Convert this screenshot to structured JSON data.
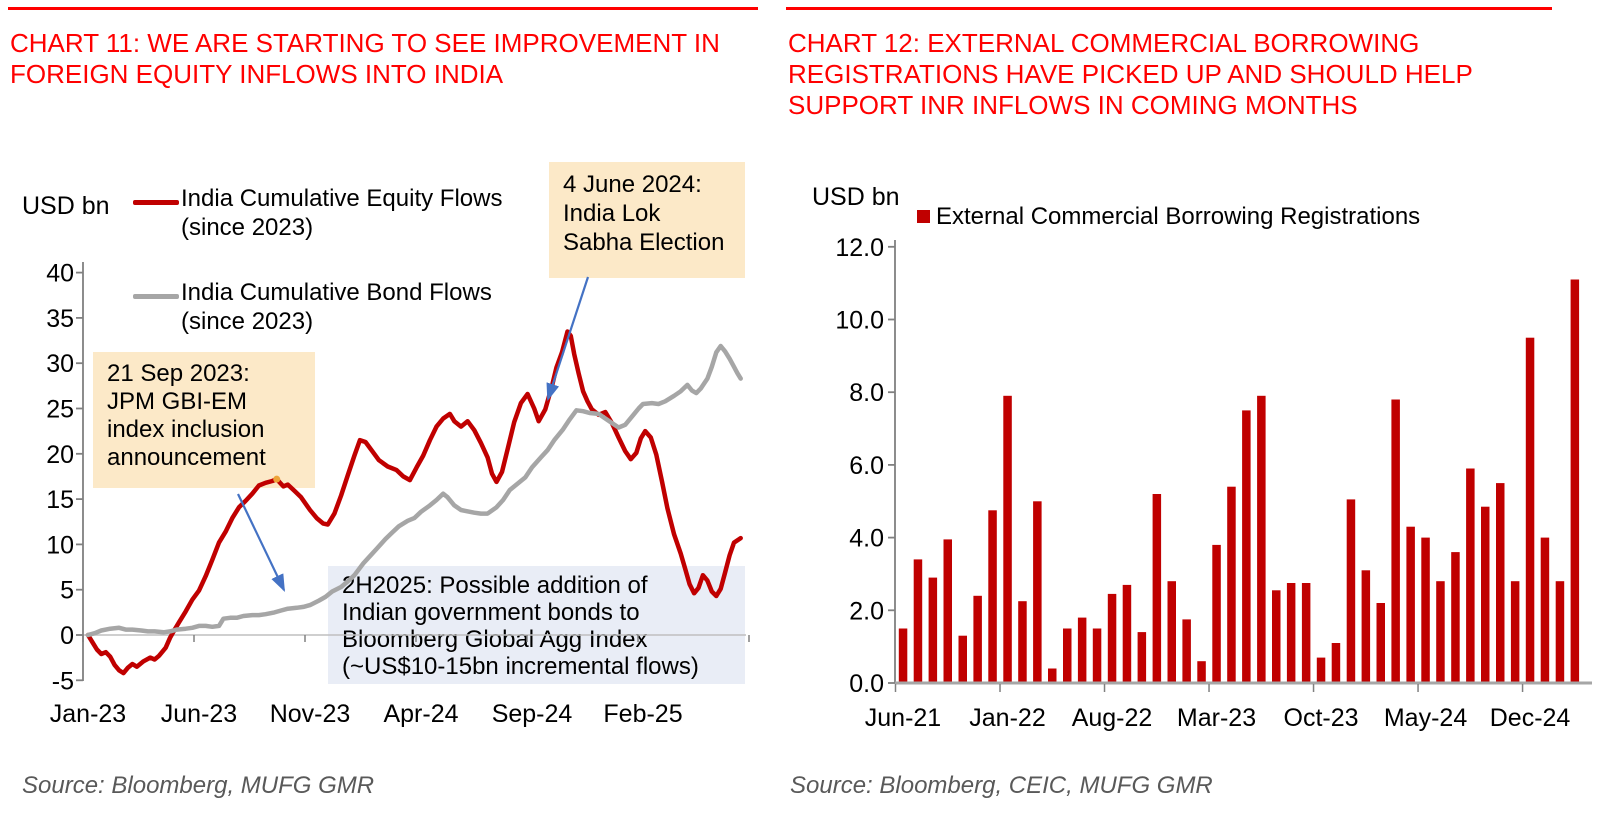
{
  "page": {
    "colors": {
      "title_red": "#FF0000",
      "rule_red": "#FF0000",
      "equity_red": "#C00000",
      "bond_gray": "#A6A6A6",
      "bar_red": "#C00000",
      "annotation_cream": "#FCE9C8",
      "annotation_blue": "#E9EDF6",
      "arrow_blue": "#4472C4",
      "source_gray": "#595959",
      "axis_gray": "#808080",
      "zero_line_gray": "#BFBFBF",
      "baseline_gray": "#A6A6A6",
      "peak_marker_orange": "#EDA338",
      "tick_text": "#000000"
    }
  },
  "chart_data": [
    {
      "type": "line",
      "title": "CHART 11: WE ARE STARTING TO SEE IMPROVEMENT IN\nFOREIGN EQUITY INFLOWS INTO INDIA",
      "unit_label": "USD bn",
      "ylim": [
        -5,
        40
      ],
      "ytick_step": 5,
      "ytick_labels": [
        "-5",
        "0",
        "5",
        "10",
        "15",
        "20",
        "25",
        "30",
        "35",
        "40"
      ],
      "x_tick_labels": [
        "Jan-23",
        "Jun-23",
        "Nov-23",
        "Apr-24",
        "Sep-24",
        "Feb-25"
      ],
      "x_tick_months": [
        0,
        5,
        10,
        15,
        20,
        25
      ],
      "grid": "zero-line-only",
      "legend_position": "top-left-inside",
      "series": [
        {
          "name": "India Cumulative Equity Flows (since 2023)",
          "legend_label": "India Cumulative Equity Flows\n(since 2023)",
          "color_key": "equity_red",
          "points": [
            [
              0,
              0
            ],
            [
              0.2,
              -0.8
            ],
            [
              0.4,
              -1.6
            ],
            [
              0.6,
              -2.1
            ],
            [
              0.8,
              -1.9
            ],
            [
              1,
              -2.4
            ],
            [
              1.2,
              -3.3
            ],
            [
              1.4,
              -3.9
            ],
            [
              1.6,
              -4.2
            ],
            [
              1.8,
              -3.6
            ],
            [
              2,
              -3.2
            ],
            [
              2.2,
              -3.5
            ],
            [
              2.5,
              -2.9
            ],
            [
              2.8,
              -2.5
            ],
            [
              3,
              -2.7
            ],
            [
              3.2,
              -2.3
            ],
            [
              3.5,
              -1.4
            ],
            [
              3.7,
              -0.3
            ],
            [
              3.9,
              0.6
            ],
            [
              4.1,
              1.4
            ],
            [
              4.4,
              2.6
            ],
            [
              4.7,
              3.9
            ],
            [
              5,
              4.9
            ],
            [
              5.3,
              6.5
            ],
            [
              5.6,
              8.3
            ],
            [
              5.9,
              10.2
            ],
            [
              6.2,
              11.4
            ],
            [
              6.5,
              12.9
            ],
            [
              6.8,
              14.1
            ],
            [
              7.1,
              14.8
            ],
            [
              7.4,
              15.6
            ],
            [
              7.7,
              16.5
            ],
            [
              8,
              16.8
            ],
            [
              8.3,
              17
            ],
            [
              8.5,
              17.2
            ],
            [
              8.8,
              16.4
            ],
            [
              9,
              16.6
            ],
            [
              9.3,
              15.9
            ],
            [
              9.6,
              15.2
            ],
            [
              10,
              13.8
            ],
            [
              10.3,
              12.9
            ],
            [
              10.6,
              12.3
            ],
            [
              10.8,
              12.2
            ],
            [
              11.1,
              13.4
            ],
            [
              11.4,
              15.4
            ],
            [
              11.7,
              17.6
            ],
            [
              12,
              19.8
            ],
            [
              12.25,
              21.5
            ],
            [
              12.5,
              21.3
            ],
            [
              12.8,
              20.3
            ],
            [
              13.1,
              19.3
            ],
            [
              13.5,
              18.6
            ],
            [
              13.9,
              18.2
            ],
            [
              14.2,
              17.5
            ],
            [
              14.5,
              17.1
            ],
            [
              14.8,
              18.5
            ],
            [
              15.1,
              19.8
            ],
            [
              15.4,
              21.5
            ],
            [
              15.7,
              23
            ],
            [
              16,
              23.9
            ],
            [
              16.3,
              24.4
            ],
            [
              16.5,
              23.6
            ],
            [
              16.8,
              23
            ],
            [
              17.1,
              23.6
            ],
            [
              17.4,
              22.6
            ],
            [
              17.7,
              21.2
            ],
            [
              18,
              19.6
            ],
            [
              18.2,
              17.8
            ],
            [
              18.4,
              16.9
            ],
            [
              18.65,
              18
            ],
            [
              18.9,
              20.5
            ],
            [
              19.2,
              23.5
            ],
            [
              19.5,
              25.6
            ],
            [
              19.8,
              26.6
            ],
            [
              20.1,
              25
            ],
            [
              20.3,
              23.6
            ],
            [
              20.6,
              24.9
            ],
            [
              20.9,
              27.5
            ],
            [
              21.1,
              29.5
            ],
            [
              21.35,
              31.2
            ],
            [
              21.6,
              33.5
            ],
            [
              21.75,
              33
            ],
            [
              21.9,
              31
            ],
            [
              22.1,
              28.9
            ],
            [
              22.3,
              26.9
            ],
            [
              22.5,
              25.8
            ],
            [
              22.7,
              24.9
            ],
            [
              23,
              24.3
            ],
            [
              23.3,
              24.6
            ],
            [
              23.6,
              23.4
            ],
            [
              23.9,
              21.8
            ],
            [
              24.2,
              20.3
            ],
            [
              24.45,
              19.4
            ],
            [
              24.7,
              20.1
            ],
            [
              24.9,
              21.7
            ],
            [
              25.1,
              22.5
            ],
            [
              25.35,
              21.8
            ],
            [
              25.6,
              19.9
            ],
            [
              25.85,
              17
            ],
            [
              26.1,
              14
            ],
            [
              26.4,
              11.1
            ],
            [
              26.7,
              9
            ],
            [
              26.9,
              7.3
            ],
            [
              27.1,
              5.6
            ],
            [
              27.3,
              4.6
            ],
            [
              27.5,
              5.2
            ],
            [
              27.7,
              6.6
            ],
            [
              27.9,
              6
            ],
            [
              28.1,
              4.8
            ],
            [
              28.3,
              4.3
            ],
            [
              28.5,
              5.1
            ],
            [
              28.7,
              6.9
            ],
            [
              28.9,
              8.8
            ],
            [
              29.1,
              10.2
            ],
            [
              29.4,
              10.7
            ]
          ]
        },
        {
          "name": "India Cumulative Bond Flows (since 2023)",
          "legend_label": "India Cumulative Bond Flows\n(since 2023)",
          "color_key": "bond_gray",
          "points": [
            [
              0,
              0
            ],
            [
              0.3,
              0.2
            ],
            [
              0.6,
              0.5
            ],
            [
              1,
              0.7
            ],
            [
              1.4,
              0.8
            ],
            [
              1.7,
              0.6
            ],
            [
              2,
              0.6
            ],
            [
              2.4,
              0.5
            ],
            [
              2.7,
              0.4
            ],
            [
              3,
              0.4
            ],
            [
              3.4,
              0.3
            ],
            [
              3.7,
              0.4
            ],
            [
              4,
              0.6
            ],
            [
              4.4,
              0.7
            ],
            [
              4.7,
              0.8
            ],
            [
              5,
              1
            ],
            [
              5.3,
              1
            ],
            [
              5.6,
              0.9
            ],
            [
              5.9,
              1
            ],
            [
              6.1,
              1.8
            ],
            [
              6.4,
              1.9
            ],
            [
              6.7,
              1.9
            ],
            [
              7,
              2.1
            ],
            [
              7.4,
              2.2
            ],
            [
              7.7,
              2.2
            ],
            [
              8,
              2.3
            ],
            [
              8.4,
              2.5
            ],
            [
              8.7,
              2.7
            ],
            [
              9,
              2.9
            ],
            [
              9.4,
              3
            ],
            [
              9.7,
              3.1
            ],
            [
              10,
              3.3
            ],
            [
              10.4,
              3.8
            ],
            [
              10.7,
              4.2
            ],
            [
              11,
              4.8
            ],
            [
              11.4,
              5.3
            ],
            [
              11.7,
              5.9
            ],
            [
              12,
              6.6
            ],
            [
              12.4,
              7.9
            ],
            [
              12.7,
              8.7
            ],
            [
              13,
              9.5
            ],
            [
              13.4,
              10.6
            ],
            [
              13.7,
              11.3
            ],
            [
              14,
              12
            ],
            [
              14.4,
              12.6
            ],
            [
              14.7,
              12.9
            ],
            [
              15,
              13.6
            ],
            [
              15.4,
              14.3
            ],
            [
              15.7,
              14.9
            ],
            [
              16,
              15.6
            ],
            [
              16.2,
              15.2
            ],
            [
              16.5,
              14.3
            ],
            [
              16.8,
              13.8
            ],
            [
              17,
              13.7
            ],
            [
              17.4,
              13.5
            ],
            [
              17.7,
              13.4
            ],
            [
              18,
              13.4
            ],
            [
              18.4,
              14.1
            ],
            [
              18.7,
              14.9
            ],
            [
              19,
              16
            ],
            [
              19.4,
              16.8
            ],
            [
              19.7,
              17.4
            ],
            [
              20,
              18.5
            ],
            [
              20.4,
              19.6
            ],
            [
              20.7,
              20.4
            ],
            [
              21,
              21.5
            ],
            [
              21.4,
              22.7
            ],
            [
              21.7,
              23.8
            ],
            [
              22,
              24.8
            ],
            [
              22.3,
              24.7
            ],
            [
              22.6,
              24.5
            ],
            [
              23,
              24.4
            ],
            [
              23.3,
              23.9
            ],
            [
              23.6,
              23.4
            ],
            [
              23.9,
              22.9
            ],
            [
              24.2,
              23.2
            ],
            [
              24.5,
              24.1
            ],
            [
              24.8,
              25
            ],
            [
              25,
              25.5
            ],
            [
              25.4,
              25.6
            ],
            [
              25.7,
              25.5
            ],
            [
              26,
              25.8
            ],
            [
              26.4,
              26.4
            ],
            [
              26.7,
              26.9
            ],
            [
              27,
              27.6
            ],
            [
              27.2,
              27
            ],
            [
              27.4,
              26.7
            ],
            [
              27.6,
              27.2
            ],
            [
              27.9,
              28.3
            ],
            [
              28.1,
              29.6
            ],
            [
              28.3,
              31.2
            ],
            [
              28.5,
              31.9
            ],
            [
              28.7,
              31.3
            ],
            [
              28.9,
              30.5
            ],
            [
              29.1,
              29.6
            ],
            [
              29.25,
              28.9
            ],
            [
              29.4,
              28.3
            ]
          ]
        }
      ],
      "peak_marker": {
        "month": 8.5,
        "value": 17.2
      },
      "annotations": [
        {
          "id": "jpm-inclusion",
          "text": "21 Sep 2023:\nJPM GBI-EM\nindex inclusion\nannouncement",
          "bg_key": "annotation_cream"
        },
        {
          "id": "lok-sabha-election",
          "text": "4 June 2024:\nIndia Lok\nSabha Election",
          "bg_key": "annotation_cream"
        },
        {
          "id": "bloomberg-agg",
          "text": "2H2025: Possible addition of\nIndian government bonds to\nBloomberg Global Agg Index\n(~US$10-15bn incremental flows)",
          "bg_key": "annotation_blue"
        }
      ],
      "source": "Source: Bloomberg, MUFG GMR"
    },
    {
      "type": "bar",
      "title": "CHART 12: EXTERNAL COMMERCIAL BORROWING\nREGISTRATIONS HAVE PICKED UP AND SHOULD HELP\nSUPPORT INR INFLOWS IN COMING MONTHS",
      "unit_label": "USD bn",
      "legend_label": "External Commercial Borrowing Registrations",
      "ylim": [
        0,
        12
      ],
      "ytick_step": 2,
      "ytick_labels": [
        "0.0",
        "2.0",
        "4.0",
        "6.0",
        "8.0",
        "10.0",
        "12.0"
      ],
      "categories": [
        "Jun-21",
        "Jul-21",
        "Aug-21",
        "Sep-21",
        "Oct-21",
        "Nov-21",
        "Dec-21",
        "Jan-22",
        "Feb-22",
        "Mar-22",
        "Apr-22",
        "May-22",
        "Jun-22",
        "Jul-22",
        "Aug-22",
        "Sep-22",
        "Oct-22",
        "Nov-22",
        "Dec-22",
        "Jan-23",
        "Feb-23",
        "Mar-23",
        "Apr-23",
        "May-23",
        "Jun-23",
        "Jul-23",
        "Aug-23",
        "Sep-23",
        "Oct-23",
        "Nov-23",
        "Dec-23",
        "Jan-24",
        "Feb-24",
        "Mar-24",
        "Apr-24",
        "May-24",
        "Jun-24",
        "Jul-24",
        "Aug-24",
        "Sep-24",
        "Oct-24",
        "Nov-24",
        "Dec-24",
        "Jan-25",
        "Feb-25",
        "Mar-25"
      ],
      "values": [
        1.5,
        3.4,
        2.9,
        3.95,
        1.3,
        2.4,
        4.75,
        7.9,
        2.25,
        5.0,
        0.4,
        1.5,
        1.8,
        1.5,
        2.45,
        2.7,
        1.4,
        5.2,
        2.8,
        1.75,
        0.6,
        3.8,
        5.4,
        7.5,
        7.9,
        2.55,
        2.75,
        2.75,
        0.7,
        1.1,
        5.05,
        3.1,
        2.2,
        7.8,
        4.3,
        4.0,
        2.8,
        3.6,
        5.9,
        4.85,
        5.5,
        2.8,
        9.5,
        4.0,
        2.8,
        11.1
      ],
      "x_tick_labels": [
        "Jun-21",
        "Jan-22",
        "Aug-22",
        "Mar-23",
        "Oct-23",
        "May-24",
        "Dec-24"
      ],
      "x_tick_indices": [
        0,
        7,
        14,
        21,
        28,
        35,
        42
      ],
      "source": "Source: Bloomberg, CEIC, MUFG GMR"
    }
  ]
}
